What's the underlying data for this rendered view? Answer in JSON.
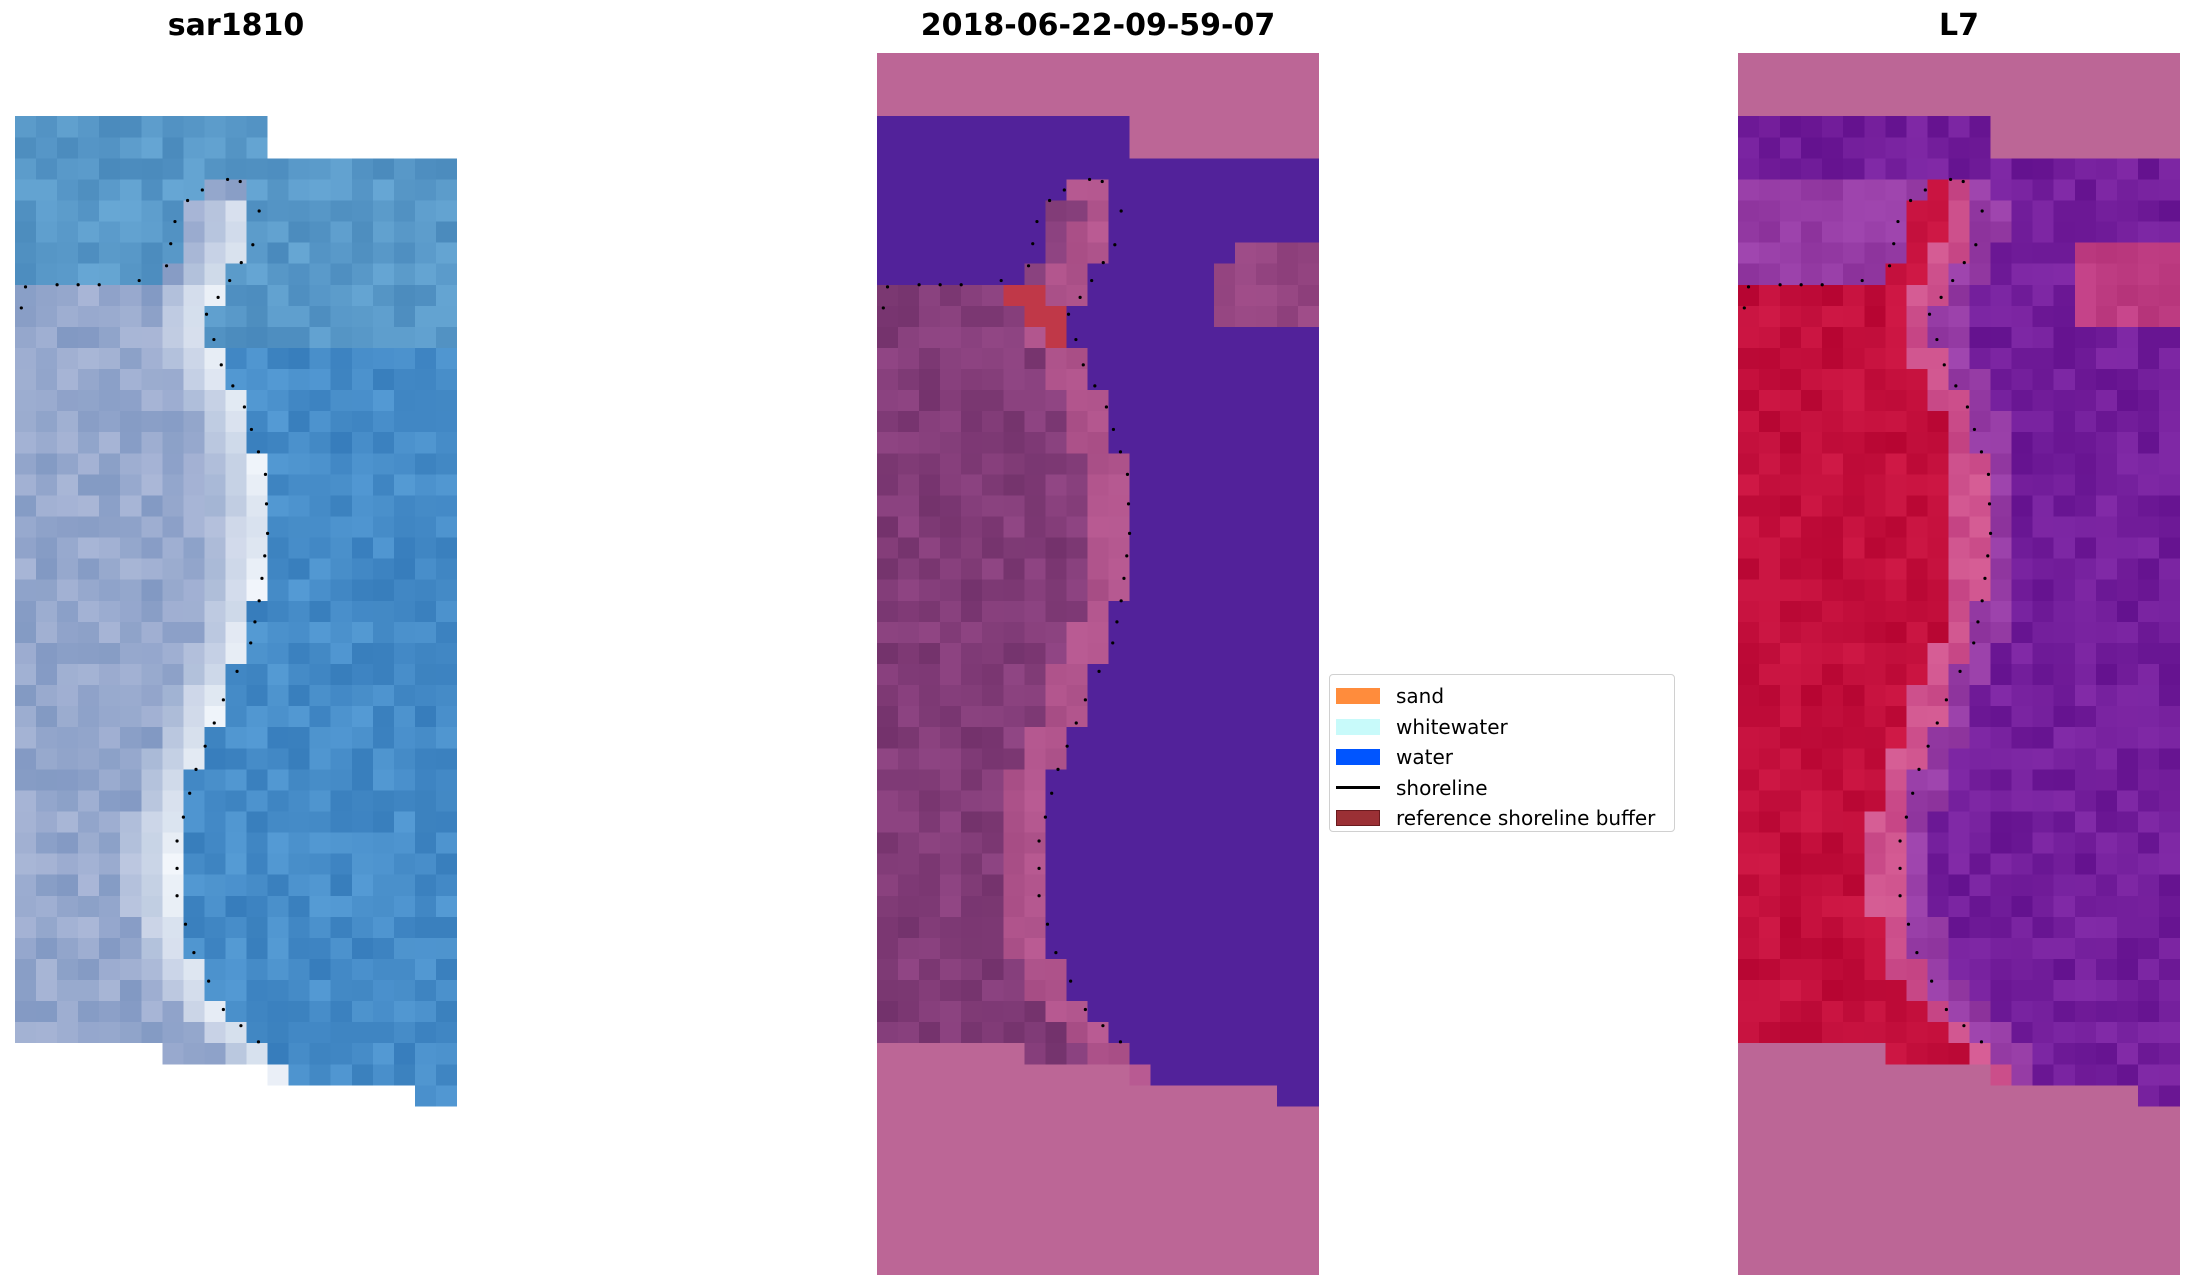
{
  "chart_data": {
    "type": "heatmap",
    "panels": [
      {
        "title": "sar1810",
        "content": "RGB satellite image"
      },
      {
        "title": "2018-06-22-09-59-07",
        "content": "classified image"
      },
      {
        "title": "L7",
        "content": "MNDWI image"
      }
    ],
    "legend": {
      "placement": "center",
      "items": [
        {
          "label": "sand",
          "color": "#ff8c3c",
          "kind": "patch"
        },
        {
          "label": "whitewater",
          "color": "#c8fafa",
          "kind": "patch"
        },
        {
          "label": "water",
          "color": "#0055ff",
          "kind": "patch"
        },
        {
          "label": "shoreline",
          "color": "#000000",
          "kind": "line"
        },
        {
          "label": "reference shoreline buffer",
          "color": "#9b3035",
          "kind": "patch"
        }
      ]
    },
    "colors": {
      "nodata": "#bc6696",
      "classified_water": "#52229a",
      "reference_buffer": "#c03848",
      "mndwi_land": "#c0103c",
      "mndwi_water": "#7a1e98"
    },
    "axes": "off",
    "grid": false
  }
}
